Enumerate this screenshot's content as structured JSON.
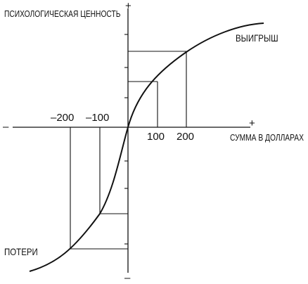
{
  "y_axis": {
    "label": "ПСИХОЛОГИЧЕСКАЯ ЦЕННОСТЬ",
    "plus": "+",
    "minus": "–"
  },
  "x_axis": {
    "label": "СУММА В ДОЛЛАРАХ",
    "plus": "+",
    "minus": "–"
  },
  "curve": {
    "gains_label": "ВЫИГРЫШ",
    "losses_label": "ПОТЕРИ"
  },
  "tick_labels": {
    "neg_200": "–200",
    "neg_100": "–100",
    "pos_100": "100",
    "pos_200": "200"
  },
  "chart_data": {
    "type": "line",
    "x": [
      -200,
      -100,
      0,
      100,
      200
    ],
    "xlabel": "СУММА В ДОЛЛАРАХ",
    "ylabel": "ПСИХОЛОГИЧЕСКАЯ ЦЕННОСТЬ",
    "series": [
      {
        "name": "ВЫИГРЫШ",
        "x_range": [
          0,
          200
        ]
      },
      {
        "name": "ПОТЕРИ",
        "x_range": [
          -200,
          0
        ]
      }
    ]
  },
  "colors": {
    "ink": "#111111",
    "background": "#ffffff"
  }
}
